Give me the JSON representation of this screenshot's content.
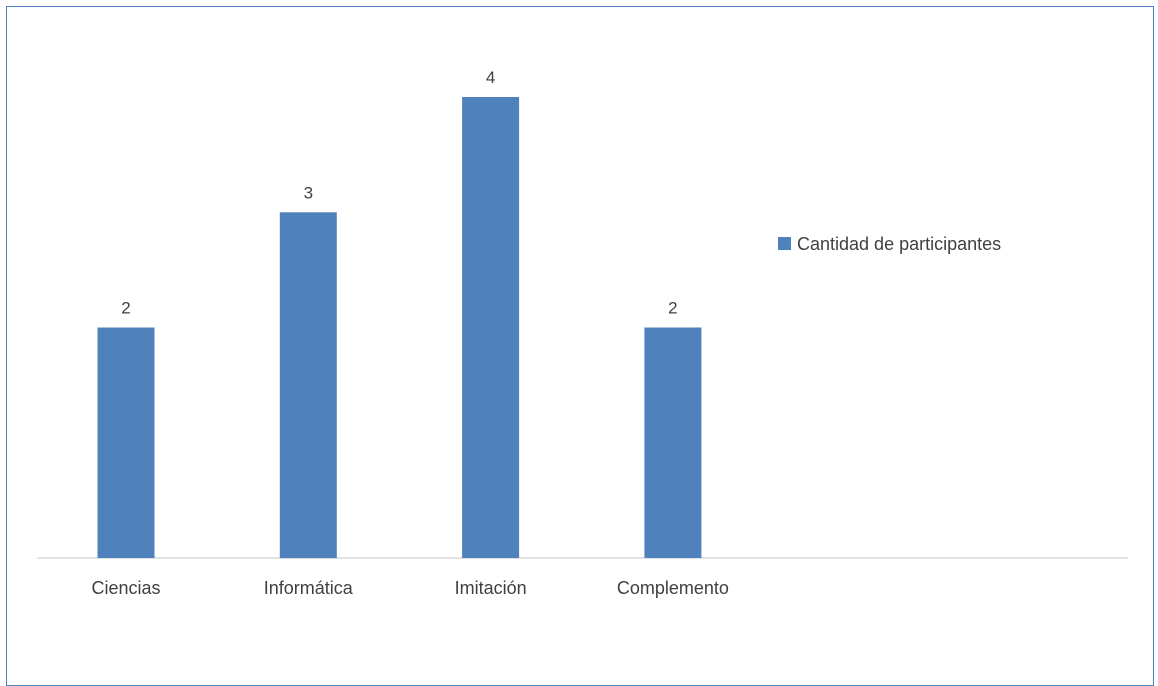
{
  "chart_data": {
    "type": "bar",
    "title": "",
    "xlabel": "",
    "ylabel": "",
    "categories": [
      "Ciencias",
      "Informática",
      "Imitación",
      "Complemento"
    ],
    "series": [
      {
        "name": "Cantidad de participantes",
        "values": [
          2,
          3,
          4,
          2
        ],
        "color": "#4f81bd"
      }
    ],
    "ylim": [
      0,
      4
    ],
    "grid": false,
    "legend": "right",
    "data_labels": true
  },
  "colors": {
    "frame_border": "#4f81bd",
    "axis_line": "#d9d9d9",
    "text": "#404040"
  }
}
